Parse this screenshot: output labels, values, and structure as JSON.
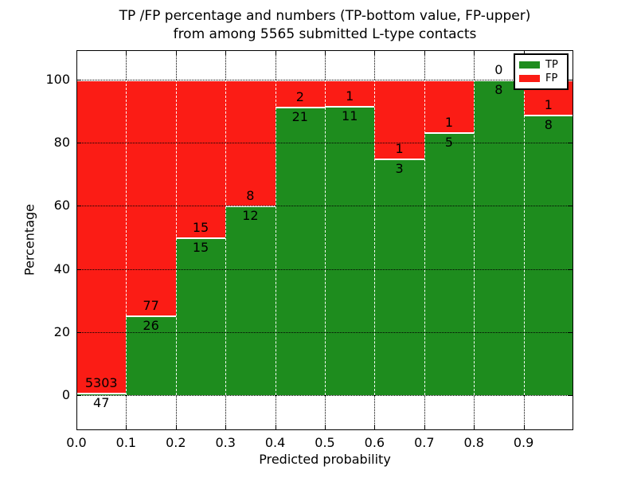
{
  "title": {
    "line1": "TP /FP percentage and numbers (TP-bottom value, FP-upper)",
    "line2": "from among 5565 submitted L-type contacts"
  },
  "chart_data": {
    "type": "bar",
    "stacked": true,
    "normalized_to_percent": true,
    "title": "TP /FP percentage and numbers (TP-bottom value, FP-upper)\nfrom among 5565 submitted L-type contacts",
    "xlabel": "Predicted probability",
    "ylabel": "Percentage",
    "total_contacts": 5565,
    "x_tick_labels": [
      "0.0",
      "0.1",
      "0.2",
      "0.3",
      "0.4",
      "0.5",
      "0.6",
      "0.7",
      "0.8",
      "0.9"
    ],
    "y_ticks": [
      0,
      20,
      40,
      60,
      80,
      100
    ],
    "xlim": [
      0.0,
      1.0
    ],
    "ylim": [
      -11.1,
      109.35
    ],
    "grid": true,
    "legend": {
      "position": "upper right",
      "entries": [
        {
          "label": "TP",
          "color": "#1e8c1e"
        },
        {
          "label": "FP",
          "color": "#fb1c15"
        }
      ]
    },
    "colors": {
      "tp": "#1e8c1e",
      "fp": "#fb1c15"
    },
    "bins": [
      {
        "range": "0.0-0.1",
        "tp": 47,
        "fp": 5303
      },
      {
        "range": "0.1-0.2",
        "tp": 26,
        "fp": 77
      },
      {
        "range": "0.2-0.3",
        "tp": 15,
        "fp": 15
      },
      {
        "range": "0.3-0.4",
        "tp": 12,
        "fp": 8
      },
      {
        "range": "0.4-0.5",
        "tp": 21,
        "fp": 2
      },
      {
        "range": "0.5-0.6",
        "tp": 11,
        "fp": 1
      },
      {
        "range": "0.6-0.7",
        "tp": 3,
        "fp": 1
      },
      {
        "range": "0.7-0.8",
        "tp": 5,
        "fp": 1
      },
      {
        "range": "0.8-0.9",
        "tp": 8,
        "fp": 0
      },
      {
        "range": "0.9-1.0",
        "tp": 8,
        "fp": 1
      }
    ]
  }
}
